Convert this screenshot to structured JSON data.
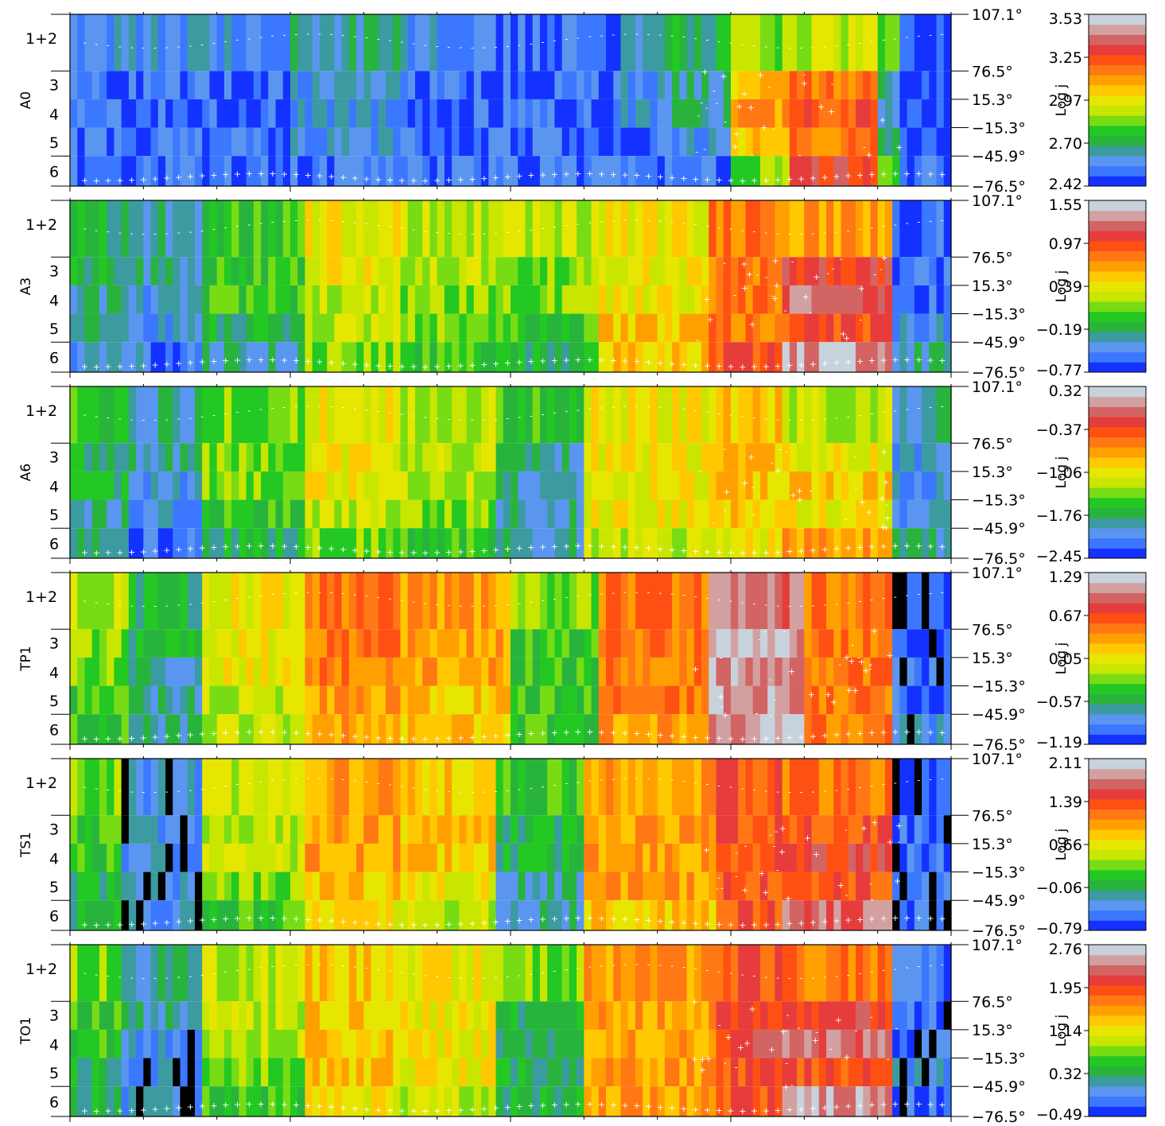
{
  "colorbar_label": "Log j",
  "colormap": [
    "#1432ff",
    "#3c78ff",
    "#5a96f0",
    "#3c9ba0",
    "#28b43c",
    "#23c823",
    "#78dc14",
    "#c8e600",
    "#e6e600",
    "#ffc800",
    "#ffa000",
    "#ff7814",
    "#ff5014",
    "#e63c3c",
    "#d26464",
    "#d2a0a0",
    "#c8d2dc"
  ],
  "black_color": "#000000",
  "marker_color": "#ffffff",
  "chart_data": [
    {
      "type": "heatmap",
      "panel_label": "A0",
      "y_tick_labels": [
        "1+2",
        "3",
        "4",
        "5",
        "6"
      ],
      "right_tick_labels": [
        "107.1°",
        "76.5°",
        "15.3°",
        "−15.3°",
        "−45.9°",
        "−76.5°"
      ],
      "colorbar_ticks": [
        "3.53",
        "3.25",
        "2.97",
        "2.70",
        "2.42"
      ],
      "colorbar_range": [
        2.42,
        3.53
      ],
      "columns": 120,
      "region_levels": [
        {
          "from": 0,
          "to": 30,
          "rows": [
            2,
            1,
            1,
            1,
            1
          ]
        },
        {
          "from": 30,
          "to": 45,
          "rows": [
            3,
            2,
            2,
            2,
            1
          ]
        },
        {
          "from": 45,
          "to": 50,
          "rows": [
            2,
            1,
            1,
            1,
            1
          ]
        },
        {
          "from": 50,
          "to": 75,
          "rows": [
            1,
            1,
            1,
            1,
            1
          ]
        },
        {
          "from": 75,
          "to": 82,
          "rows": [
            3,
            2,
            2,
            1,
            1
          ]
        },
        {
          "from": 82,
          "to": 90,
          "rows": [
            4,
            3,
            3,
            2,
            1
          ]
        },
        {
          "from": 90,
          "to": 98,
          "rows": [
            6,
            9,
            10,
            9,
            6
          ]
        },
        {
          "from": 98,
          "to": 110,
          "rows": [
            7,
            11,
            12,
            11,
            13
          ]
        },
        {
          "from": 110,
          "to": 113,
          "rows": [
            6,
            3,
            3,
            3,
            6
          ]
        },
        {
          "from": 113,
          "to": 120,
          "rows": [
            0,
            0,
            0,
            0,
            1
          ]
        }
      ]
    },
    {
      "type": "heatmap",
      "panel_label": "A3",
      "y_tick_labels": [
        "1+2",
        "3",
        "4",
        "5",
        "6"
      ],
      "right_tick_labels": [
        "107.1°",
        "76.5°",
        "15.3°",
        "−15.3°",
        "−45.9°",
        "−76.5°"
      ],
      "colorbar_ticks": [
        "1.55",
        "0.97",
        "0.39",
        "−0.19",
        "−0.77"
      ],
      "colorbar_range": [
        -0.77,
        1.55
      ],
      "columns": 120,
      "region_levels": [
        {
          "from": 0,
          "to": 10,
          "rows": [
            4,
            4,
            3,
            3,
            2
          ]
        },
        {
          "from": 10,
          "to": 18,
          "rows": [
            3,
            3,
            2,
            2,
            1
          ]
        },
        {
          "from": 18,
          "to": 32,
          "rows": [
            5,
            5,
            5,
            4,
            3
          ]
        },
        {
          "from": 32,
          "to": 45,
          "rows": [
            8,
            8,
            7,
            7,
            6
          ]
        },
        {
          "from": 45,
          "to": 60,
          "rows": [
            7,
            7,
            6,
            6,
            5
          ]
        },
        {
          "from": 60,
          "to": 72,
          "rows": [
            7,
            6,
            6,
            5,
            4
          ]
        },
        {
          "from": 72,
          "to": 87,
          "rows": [
            8,
            8,
            8,
            9,
            9
          ]
        },
        {
          "from": 87,
          "to": 97,
          "rows": [
            11,
            11,
            11,
            11,
            12
          ]
        },
        {
          "from": 97,
          "to": 112,
          "rows": [
            10,
            13,
            14,
            12,
            15
          ]
        },
        {
          "from": 112,
          "to": 120,
          "rows": [
            1,
            1,
            1,
            2,
            3
          ]
        }
      ]
    },
    {
      "type": "heatmap",
      "panel_label": "A6",
      "y_tick_labels": [
        "1+2",
        "3",
        "4",
        "5",
        "6"
      ],
      "right_tick_labels": [
        "107.1°",
        "76.5°",
        "15.3°",
        "−15.3°",
        "−45.9°",
        "−76.5°"
      ],
      "colorbar_ticks": [
        "0.32",
        "−0.37",
        "−1.06",
        "−1.76",
        "−2.45"
      ],
      "colorbar_range": [
        -2.45,
        0.32
      ],
      "columns": 120,
      "region_levels": [
        {
          "from": 0,
          "to": 8,
          "rows": [
            5,
            4,
            4,
            3,
            3
          ]
        },
        {
          "from": 8,
          "to": 18,
          "rows": [
            3,
            3,
            2,
            2,
            1
          ]
        },
        {
          "from": 18,
          "to": 32,
          "rows": [
            6,
            6,
            6,
            5,
            4
          ]
        },
        {
          "from": 32,
          "to": 45,
          "rows": [
            8,
            8,
            8,
            7,
            6
          ]
        },
        {
          "from": 45,
          "to": 58,
          "rows": [
            7,
            7,
            7,
            6,
            5
          ]
        },
        {
          "from": 58,
          "to": 70,
          "rows": [
            5,
            3,
            3,
            3,
            3
          ]
        },
        {
          "from": 70,
          "to": 88,
          "rows": [
            8,
            8,
            8,
            8,
            7
          ]
        },
        {
          "from": 88,
          "to": 97,
          "rows": [
            9,
            9,
            9,
            9,
            8
          ]
        },
        {
          "from": 97,
          "to": 112,
          "rows": [
            7,
            8,
            9,
            8,
            10
          ]
        },
        {
          "from": 112,
          "to": 120,
          "rows": [
            3,
            2,
            2,
            2,
            3
          ]
        }
      ]
    },
    {
      "type": "heatmap",
      "panel_label": "TP1",
      "y_tick_labels": [
        "1+2",
        "3",
        "4",
        "5",
        "6"
      ],
      "right_tick_labels": [
        "107.1°",
        "76.5°",
        "15.3°",
        "−15.3°",
        "−45.9°",
        "−76.5°"
      ],
      "colorbar_ticks": [
        "1.29",
        "0.67",
        "0.05",
        "−0.57",
        "−1.19"
      ],
      "colorbar_range": [
        -1.19,
        1.29
      ],
      "columns": 120,
      "region_levels": [
        {
          "from": 0,
          "to": 8,
          "rows": [
            7,
            6,
            6,
            5,
            5
          ]
        },
        {
          "from": 8,
          "to": 18,
          "rows": [
            4,
            4,
            3,
            3,
            3
          ]
        },
        {
          "from": 18,
          "to": 32,
          "rows": [
            8,
            8,
            8,
            7,
            7
          ]
        },
        {
          "from": 32,
          "to": 45,
          "rows": [
            11,
            11,
            11,
            10,
            10
          ]
        },
        {
          "from": 45,
          "to": 60,
          "rows": [
            10,
            10,
            10,
            9,
            9
          ]
        },
        {
          "from": 60,
          "to": 72,
          "rows": [
            6,
            5,
            5,
            5,
            5
          ]
        },
        {
          "from": 72,
          "to": 87,
          "rows": [
            11,
            11,
            11,
            11,
            10
          ]
        },
        {
          "from": 87,
          "to": 100,
          "rows": [
            14,
            15,
            15,
            15,
            15
          ]
        },
        {
          "from": 100,
          "to": 112,
          "rows": [
            11,
            11,
            11,
            11,
            11
          ]
        },
        {
          "from": 112,
          "to": 120,
          "rows": [
            1,
            1,
            1,
            1,
            2
          ]
        }
      ]
    },
    {
      "type": "heatmap",
      "panel_label": "TS1",
      "y_tick_labels": [
        "1+2",
        "3",
        "4",
        "5",
        "6"
      ],
      "right_tick_labels": [
        "107.1°",
        "76.5°",
        "15.3°",
        "−15.3°",
        "−45.9°",
        "−76.5°"
      ],
      "colorbar_ticks": [
        "2.11",
        "1.39",
        "0.66",
        "−0.06",
        "−0.79"
      ],
      "colorbar_range": [
        -0.79,
        2.11
      ],
      "columns": 120,
      "region_levels": [
        {
          "from": 0,
          "to": 7,
          "rows": [
            6,
            5,
            5,
            4,
            4
          ]
        },
        {
          "from": 7,
          "to": 18,
          "rows": [
            2,
            2,
            2,
            2,
            2
          ]
        },
        {
          "from": 18,
          "to": 32,
          "rows": [
            7,
            7,
            7,
            6,
            5
          ]
        },
        {
          "from": 32,
          "to": 45,
          "rows": [
            10,
            10,
            10,
            9,
            8
          ]
        },
        {
          "from": 45,
          "to": 58,
          "rows": [
            9,
            9,
            9,
            8,
            7
          ]
        },
        {
          "from": 58,
          "to": 70,
          "rows": [
            5,
            4,
            4,
            3,
            3
          ]
        },
        {
          "from": 70,
          "to": 88,
          "rows": [
            10,
            10,
            10,
            10,
            9
          ]
        },
        {
          "from": 88,
          "to": 97,
          "rows": [
            12,
            12,
            12,
            12,
            12
          ]
        },
        {
          "from": 97,
          "to": 112,
          "rows": [
            11,
            12,
            13,
            12,
            14
          ]
        },
        {
          "from": 112,
          "to": 120,
          "rows": [
            1,
            1,
            1,
            1,
            1
          ]
        }
      ]
    },
    {
      "type": "heatmap",
      "panel_label": "TO1",
      "y_tick_labels": [
        "1+2",
        "3",
        "4",
        "5",
        "6"
      ],
      "right_tick_labels": [
        "107.1°",
        "76.5°",
        "15.3°",
        "−15.3°",
        "−45.9°",
        "−76.5°"
      ],
      "colorbar_ticks": [
        "2.76",
        "1.95",
        "1.14",
        "0.32",
        "−0.49"
      ],
      "colorbar_range": [
        -0.49,
        2.76
      ],
      "columns": 120,
      "region_levels": [
        {
          "from": 0,
          "to": 7,
          "rows": [
            6,
            5,
            5,
            4,
            4
          ]
        },
        {
          "from": 7,
          "to": 18,
          "rows": [
            3,
            3,
            2,
            2,
            2
          ]
        },
        {
          "from": 18,
          "to": 32,
          "rows": [
            7,
            7,
            7,
            6,
            5
          ]
        },
        {
          "from": 32,
          "to": 45,
          "rows": [
            9,
            9,
            9,
            9,
            8
          ]
        },
        {
          "from": 45,
          "to": 58,
          "rows": [
            8,
            8,
            8,
            8,
            7
          ]
        },
        {
          "from": 58,
          "to": 70,
          "rows": [
            6,
            4,
            4,
            4,
            4
          ]
        },
        {
          "from": 70,
          "to": 88,
          "rows": [
            10,
            10,
            10,
            10,
            10
          ]
        },
        {
          "from": 88,
          "to": 97,
          "rows": [
            12,
            12,
            13,
            12,
            12
          ]
        },
        {
          "from": 97,
          "to": 112,
          "rows": [
            11,
            13,
            14,
            12,
            15
          ]
        },
        {
          "from": 112,
          "to": 120,
          "rows": [
            1,
            1,
            1,
            2,
            1
          ]
        }
      ]
    }
  ]
}
